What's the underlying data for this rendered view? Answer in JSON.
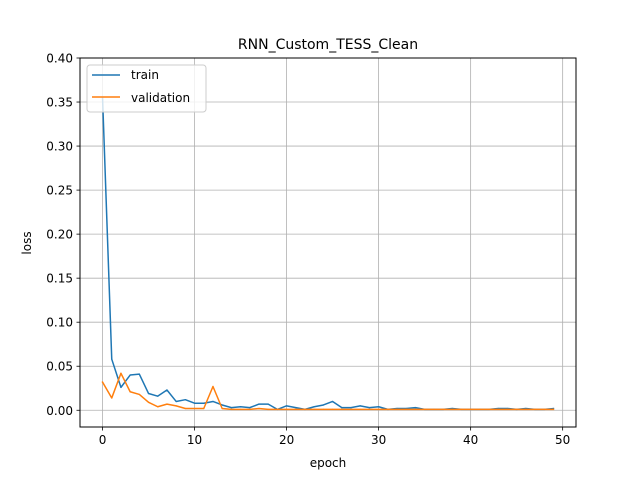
{
  "chart_data": {
    "type": "line",
    "title": "RNN_Custom_TESS_Clean",
    "xlabel": "epoch",
    "ylabel": "loss",
    "xlim": [
      -2.45,
      51.45
    ],
    "ylim": [
      -0.019,
      0.4
    ],
    "xticks": [
      0,
      10,
      20,
      30,
      40,
      50
    ],
    "yticks": [
      0.0,
      0.05,
      0.1,
      0.15,
      0.2,
      0.25,
      0.3,
      0.35,
      0.4
    ],
    "xtick_labels": [
      "0",
      "10",
      "20",
      "30",
      "40",
      "50"
    ],
    "ytick_labels": [
      "0.00",
      "0.05",
      "0.10",
      "0.15",
      "0.20",
      "0.25",
      "0.30",
      "0.35",
      "0.40"
    ],
    "grid": true,
    "legend_position": "top-left",
    "x": [
      0,
      1,
      2,
      3,
      4,
      5,
      6,
      7,
      8,
      9,
      10,
      11,
      12,
      13,
      14,
      15,
      16,
      17,
      18,
      19,
      20,
      21,
      22,
      23,
      24,
      25,
      26,
      27,
      28,
      29,
      30,
      31,
      32,
      33,
      34,
      35,
      36,
      37,
      38,
      39,
      40,
      41,
      42,
      43,
      44,
      45,
      46,
      47,
      48,
      49
    ],
    "series": [
      {
        "name": "train",
        "color": "#1f77b4",
        "values": [
          0.355,
          0.058,
          0.026,
          0.04,
          0.041,
          0.019,
          0.016,
          0.023,
          0.01,
          0.012,
          0.008,
          0.008,
          0.01,
          0.006,
          0.003,
          0.004,
          0.003,
          0.007,
          0.007,
          0.001,
          0.005,
          0.003,
          0.001,
          0.004,
          0.006,
          0.01,
          0.003,
          0.003,
          0.005,
          0.003,
          0.004,
          0.001,
          0.002,
          0.002,
          0.003,
          0.001,
          0.001,
          0.001,
          0.002,
          0.001,
          0.001,
          0.001,
          0.001,
          0.002,
          0.002,
          0.001,
          0.002,
          0.001,
          0.001,
          0.002
        ]
      },
      {
        "name": "validation",
        "color": "#ff7f0e",
        "values": [
          0.032,
          0.014,
          0.042,
          0.021,
          0.018,
          0.009,
          0.004,
          0.007,
          0.005,
          0.002,
          0.002,
          0.002,
          0.027,
          0.002,
          0.001,
          0.001,
          0.001,
          0.002,
          0.001,
          0.001,
          0.001,
          0.001,
          0.001,
          0.001,
          0.001,
          0.001,
          0.001,
          0.001,
          0.001,
          0.001,
          0.001,
          0.001,
          0.001,
          0.001,
          0.001,
          0.001,
          0.001,
          0.001,
          0.001,
          0.001,
          0.001,
          0.001,
          0.001,
          0.001,
          0.001,
          0.001,
          0.001,
          0.001,
          0.001,
          0.001
        ]
      }
    ]
  }
}
